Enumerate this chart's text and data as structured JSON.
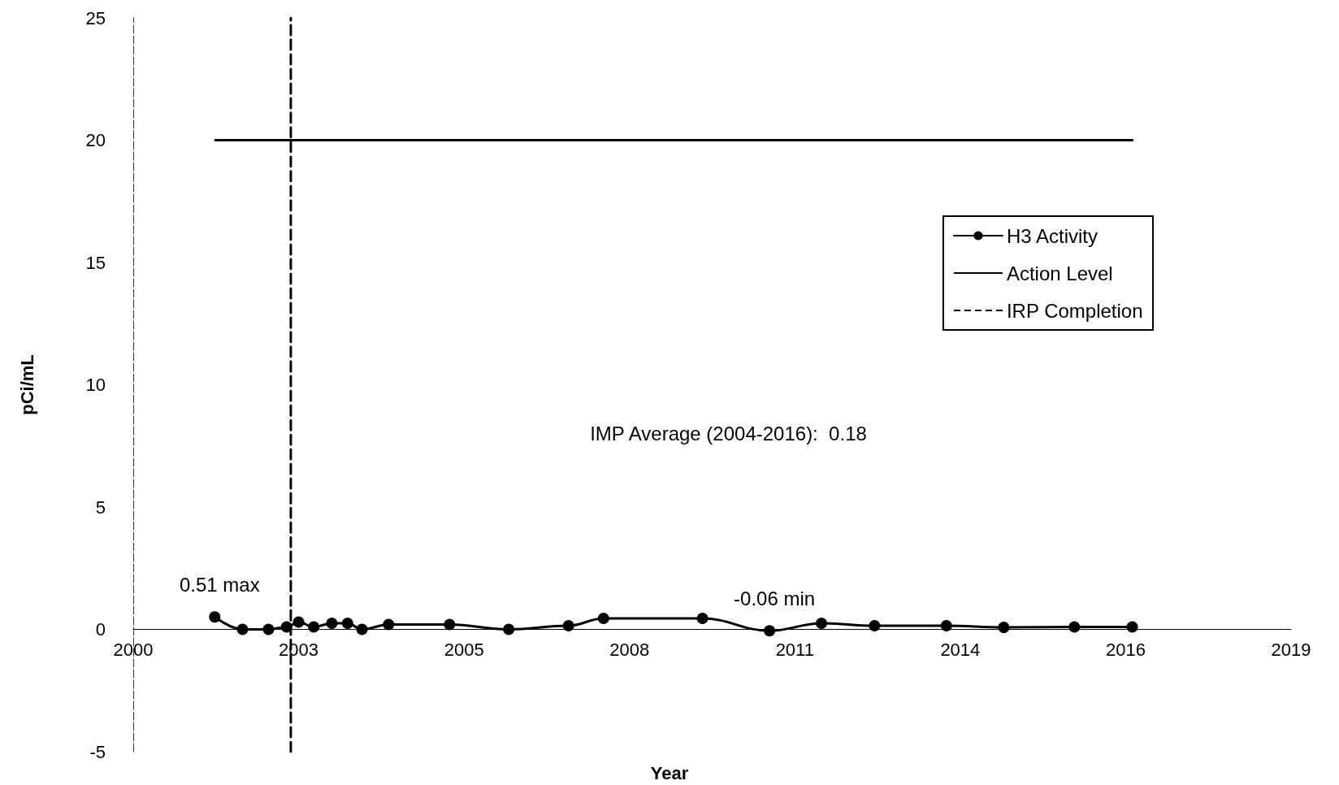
{
  "chart_data": {
    "type": "line",
    "xlabel": "Year",
    "ylabel": "pCi/mL",
    "xlim": [
      2000,
      2019.18
    ],
    "xticks": [
      {
        "value": 2000,
        "label": "2000"
      },
      {
        "value": 2002.74,
        "label": "2003"
      },
      {
        "value": 2005.48,
        "label": "2005"
      },
      {
        "value": 2008.22,
        "label": "2008"
      },
      {
        "value": 2010.96,
        "label": "2011"
      },
      {
        "value": 2013.7,
        "label": "2014"
      },
      {
        "value": 2016.44,
        "label": "2016"
      },
      {
        "value": 2019.18,
        "label": "2019"
      }
    ],
    "ylim": [
      -5,
      25
    ],
    "yticks": [
      -5,
      0,
      5,
      10,
      15,
      20,
      25
    ],
    "grid": false,
    "legend": "top right",
    "series": [
      {
        "name": "H3 Activity",
        "color": "#000000",
        "marker": "circle",
        "line_style": "solid",
        "x": [
          2001.35,
          2001.81,
          2002.24,
          2002.54,
          2002.74,
          2002.99,
          2003.29,
          2003.55,
          2003.79,
          2004.23,
          2005.24,
          2006.22,
          2007.21,
          2007.79,
          2009.43,
          2010.54,
          2011.4,
          2012.28,
          2013.47,
          2014.42,
          2015.59,
          2016.55
        ],
        "values": [
          0.51,
          0,
          0,
          0.1,
          0.3,
          0.1,
          0.25,
          0.25,
          0,
          0.2,
          0.2,
          0,
          0.15,
          0.45,
          0.45,
          -0.06,
          0.25,
          0.15,
          0.15,
          0.08,
          0.1,
          0.1
        ]
      },
      {
        "name": "Action Level",
        "color": "#000000",
        "marker": "none",
        "line_style": "solid",
        "x": [
          2001.36,
          2016.55
        ],
        "values": [
          20,
          20
        ]
      },
      {
        "name": "IRP Completion",
        "color": "#000000",
        "marker": "none",
        "line_style": "dashed",
        "x": [
          2002.61,
          2002.61
        ],
        "values": [
          -5,
          25
        ]
      }
    ],
    "annotations": [
      {
        "text": "0.51 max",
        "x": 2001.35,
        "y": 0.51
      },
      {
        "text": "-0.06 min",
        "x": 2010.54,
        "y": -0.06
      },
      "IMP Average (2004-2016):  0.18"
    ]
  }
}
